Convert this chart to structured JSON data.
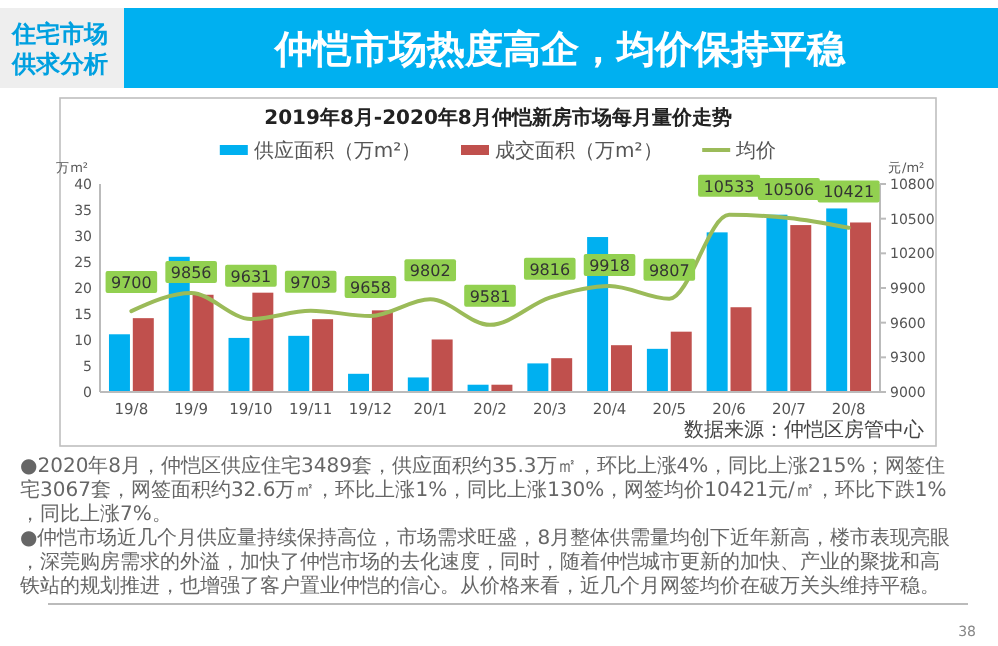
{
  "chart_data": {
    "type": "bar",
    "title": "仲恺市场热度高企，均价保持平稳",
    "subtitle": "2019年8月-2020年8月仲恺新房市场每月量价走势",
    "ylabel": "万m²",
    "y2label": "元/m²",
    "categories": [
      "19/8",
      "19/9",
      "19/10",
      "19/11",
      "19/12",
      "20/1",
      "20/2",
      "20/3",
      "20/4",
      "20/5",
      "20/6",
      "20/7",
      "20/8"
    ],
    "series": [
      {
        "name": "供应面积（万m²）",
        "color": "#00b0f0",
        "values": [
          11.1,
          26,
          10.4,
          10.8,
          3.5,
          2.8,
          1.4,
          5.5,
          29.8,
          8.3,
          30.7,
          34.1,
          35.3
        ]
      },
      {
        "name": "成交面积（万m²）",
        "color": "#c0504d",
        "values": [
          14.2,
          18.7,
          19.1,
          14,
          15.7,
          10.1,
          1.4,
          6.5,
          9,
          11.6,
          16.3,
          32.1,
          32.6
        ]
      },
      {
        "name": "均价",
        "type": "line",
        "axis": "y2",
        "color": "#9bbb59",
        "values": [
          9700,
          9856,
          9631,
          9703,
          9658,
          9802,
          9581,
          9816,
          9918,
          9807,
          10533,
          10506,
          10421
        ],
        "value_labels": [
          "9700",
          "9856",
          "9631",
          "9703",
          "9658",
          "9802",
          "9581",
          "9816",
          "9918",
          "9807",
          "10533",
          "10506",
          "10421"
        ]
      }
    ],
    "ylim": [
      0,
      40
    ],
    "yticks": [
      0,
      5,
      10,
      15,
      20,
      25,
      30,
      35,
      40
    ],
    "y2lim": [
      9000,
      10800
    ],
    "y2ticks": [
      9000,
      9300,
      9600,
      9900,
      10200,
      10500,
      10800
    ],
    "legend": "top",
    "marker": "none",
    "annotations": [
      "住宅市场供求分析",
      "数据来源：仲恺区房管中心",
      "●2020年8月，仲恺区供应住宅3489套，供应面积约35.3万㎡，环比上涨4%，同比上涨215%；网签住宅3067套，网签面积约32.6万㎡，环比上涨1%，同比上涨130%，网签均价10421元/㎡，环比下跌1%，同比上涨7%。",
      "●仲恺市场近几个月供应量持续保持高位，市场需求旺盛，8月整体供需量均创下近年新高，楼市表现亮眼，深莞购房需求的外溢，加快了仲恺市场的去化速度，同时，随着仲恺城市更新的加快、产业的聚拢和高铁站的规划推进，也增强了客户置业仲恺的信心。从价格来看，近几个月网签均价在破万关头维持平稳。",
      "38"
    ]
  }
}
